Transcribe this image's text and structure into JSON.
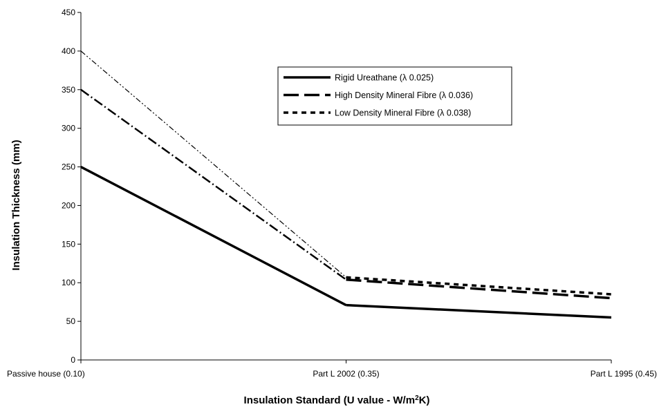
{
  "chart_data": {
    "type": "line",
    "xlabel": {
      "main": "Insulation Standard (U value - W/m",
      "sup": "2",
      "tail": "K)"
    },
    "ylabel": "Insulation Thickness (mm)",
    "categories": [
      "Passive house (0.10)",
      "Part L 2002 (0.35)",
      "Part L 1995 (0.45)"
    ],
    "ylim": [
      0,
      450
    ],
    "yticks": [
      0,
      50,
      100,
      150,
      200,
      250,
      300,
      350,
      400,
      450
    ],
    "grid": false,
    "legend_position": "top-center",
    "series": [
      {
        "name": "Rigid Ureathane (λ 0.025)",
        "values": [
          250,
          71,
          55
        ],
        "style": "solid",
        "color": "#000000"
      },
      {
        "name": "High Density Mineral Fibre (λ 0.036)",
        "values": [
          350,
          104,
          80
        ],
        "style": "longdash",
        "color": "#000000"
      },
      {
        "name": "Low Density Mineral Fibre (λ 0.038)",
        "values": [
          400,
          107,
          85
        ],
        "style": "shortdash",
        "color": "#000000"
      }
    ]
  }
}
